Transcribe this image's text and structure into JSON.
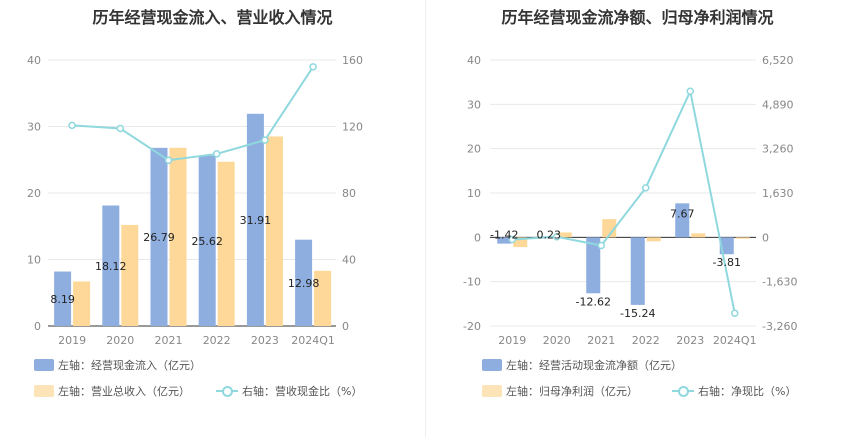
{
  "colors": {
    "bar1": "#8eaee0",
    "bar2": "#fdd898",
    "line": "#8fd8de",
    "grid": "#e8e8e8",
    "axis": "#333333"
  },
  "chart_data": [
    {
      "type": "bar",
      "title": "历年经营现金流入、营业收入情况",
      "categories": [
        "2019",
        "2020",
        "2021",
        "2022",
        "2023",
        "2024Q1"
      ],
      "left_axis": {
        "ylim": [
          0,
          40
        ],
        "ticks": [
          "0",
          "10",
          "20",
          "30",
          "40"
        ]
      },
      "right_axis": {
        "ylim": [
          0,
          160
        ],
        "ticks": [
          "0",
          "40",
          "80",
          "120",
          "160"
        ]
      },
      "series": [
        {
          "name": "左轴：经营现金流入（亿元）",
          "axis": "left",
          "kind": "bar",
          "values": [
            8.19,
            18.12,
            26.79,
            25.62,
            31.91,
            12.98
          ],
          "labels": [
            "8.19",
            "18.12",
            "26.79",
            "25.62",
            "31.91",
            "12.98"
          ]
        },
        {
          "name": "左轴：营业总收入（亿元）",
          "axis": "left",
          "kind": "bar",
          "values": [
            6.7,
            15.2,
            26.8,
            24.7,
            28.5,
            8.3
          ]
        },
        {
          "name": "右轴：营收现金比（%）",
          "axis": "right",
          "kind": "line",
          "values": [
            120.7,
            118.8,
            99.7,
            103.5,
            111.8,
            155.9
          ]
        }
      ],
      "legend": "bottom",
      "grid": true
    },
    {
      "type": "bar",
      "title": "历年经营现金流净额、归母净利润情况",
      "categories": [
        "2019",
        "2020",
        "2021",
        "2022",
        "2023",
        "2024Q1"
      ],
      "left_axis": {
        "ylim": [
          -20,
          40
        ],
        "ticks": [
          "-20",
          "-10",
          "0",
          "10",
          "20",
          "30",
          "40"
        ]
      },
      "right_axis": {
        "ylim": [
          -3260,
          6520
        ],
        "ticks": [
          "-3,260",
          "-1,630",
          "0",
          "1,630",
          "3,260",
          "4,890",
          "6,520"
        ]
      },
      "series": [
        {
          "name": "左轴：经营活动现金流净额（亿元）",
          "axis": "left",
          "kind": "bar",
          "values": [
            -1.42,
            0.23,
            -12.62,
            -15.24,
            7.67,
            -3.81
          ],
          "labels": [
            "-1.42",
            "0.23",
            "-12.62",
            "-15.24",
            "7.67",
            "-3.81"
          ]
        },
        {
          "name": "左轴：归母净利润（亿元）",
          "axis": "left",
          "kind": "bar",
          "values": [
            -2.2,
            1.1,
            4.1,
            -0.9,
            0.9,
            -0.3
          ]
        },
        {
          "name": "右轴：净现比（%）",
          "axis": "right",
          "kind": "line",
          "values": [
            -80,
            21,
            -300,
            1820,
            5370,
            -2790
          ]
        }
      ],
      "legend": "bottom",
      "grid": true
    }
  ]
}
